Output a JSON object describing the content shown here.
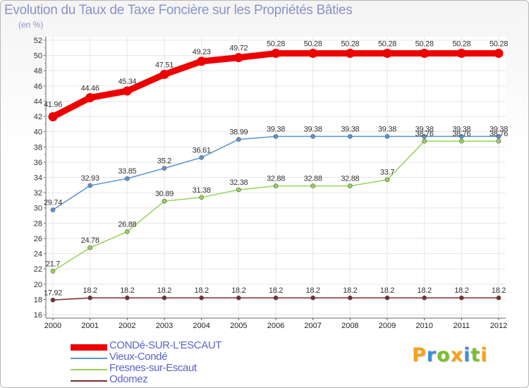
{
  "title": "Evolution du Taux de Taxe Foncière sur les Propriétés Bâties",
  "subtitle": "(en %)",
  "logo": {
    "letters": [
      "P",
      "r",
      "o",
      "x",
      "i",
      "t",
      "i"
    ],
    "colors": [
      "#f6a21a",
      "#3a8fd8",
      "#79c02a",
      "#f6a21a",
      "#3a8fd8",
      "#79c02a",
      "#f6a21a"
    ]
  },
  "chart_data": {
    "type": "line",
    "title": "Evolution du Taux de Taxe Foncière sur les Propriétés Bâties",
    "ylabel": "(en %)",
    "x": [
      "2000",
      "2001",
      "2002",
      "2003",
      "2004",
      "2005",
      "2006",
      "2007",
      "2008",
      "2009",
      "2010",
      "2011",
      "2012"
    ],
    "ylim": [
      16,
      52
    ],
    "yticks": [
      16,
      18,
      20,
      22,
      24,
      26,
      28,
      30,
      32,
      34,
      36,
      38,
      40,
      42,
      44,
      46,
      48,
      50,
      52
    ],
    "grid": true,
    "legend_position": "bottom-left",
    "series": [
      {
        "name": "CONDé-SUR-L'ESCAUT",
        "color": "#ee0000",
        "values": [
          41.96,
          44.46,
          45.34,
          47.51,
          49.23,
          49.72,
          50.28,
          50.28,
          50.28,
          50.28,
          50.28,
          50.28,
          50.28
        ],
        "labels": [
          "41.96",
          "44.46",
          "45.34",
          "47.51",
          "49.23",
          "49.72",
          "50.28",
          "50.28",
          "50.28",
          "50.28",
          "50.28",
          "50.28",
          "50.28"
        ]
      },
      {
        "name": "Vieux-Condé",
        "color": "#5b94d4",
        "values": [
          29.74,
          32.93,
          33.85,
          35.2,
          36.61,
          38.99,
          39.38,
          39.38,
          39.38,
          39.38,
          39.38,
          39.38,
          39.38
        ],
        "labels": [
          "29.74",
          "32.93",
          "33.85",
          "35.2",
          "36.61",
          "38.99",
          "39.38",
          "39.38",
          "39.38",
          "39.38",
          "39.38",
          "39.38",
          "39.38"
        ]
      },
      {
        "name": "Fresnes-sur-Escaut",
        "color": "#94d455",
        "values": [
          21.7,
          24.78,
          26.88,
          30.89,
          31.38,
          32.38,
          32.88,
          32.88,
          32.88,
          33.7,
          38.76,
          38.76,
          38.76
        ],
        "labels": [
          "21.7",
          "24.78",
          "26.88",
          "30.89",
          "31.38",
          "32.38",
          "32.88",
          "32.88",
          "32.88",
          "33.7",
          "38.76",
          "38.76",
          "38.76"
        ]
      },
      {
        "name": "Odomez",
        "color": "#7a2e2e",
        "values": [
          17.92,
          18.2,
          18.2,
          18.2,
          18.2,
          18.2,
          18.2,
          18.2,
          18.2,
          18.2,
          18.2,
          18.2,
          18.2
        ],
        "labels": [
          "17.92",
          "18.2",
          "18.2",
          "18.2",
          "18.2",
          "18.2",
          "18.2",
          "18.2",
          "18.2",
          "18.2",
          "18.2",
          "18.2",
          "18.2"
        ]
      }
    ]
  }
}
